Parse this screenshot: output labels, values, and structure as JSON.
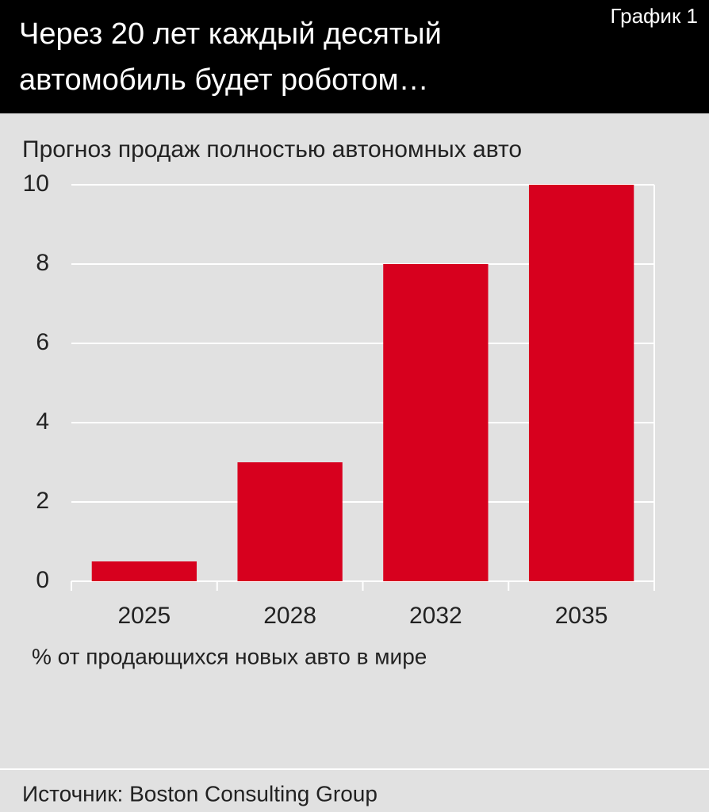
{
  "chart_data": {
    "type": "bar",
    "label": "График 1",
    "title": [
      "Через 20 лет каждый десятый",
      "автомобиль будет роботом…"
    ],
    "subtitle": "Прогноз продаж полностью автономных авто",
    "x_label": "% от продающихся новых авто в мире",
    "source": "Источник: Boston Consulting Group",
    "categories": [
      "2025",
      "2028",
      "2032",
      "2035"
    ],
    "values": [
      0.5,
      3,
      8,
      10
    ],
    "color": "#d7001e",
    "ylim": [
      0,
      10
    ],
    "yticks": [
      0,
      2,
      4,
      6,
      8,
      10
    ],
    "grid": true
  }
}
